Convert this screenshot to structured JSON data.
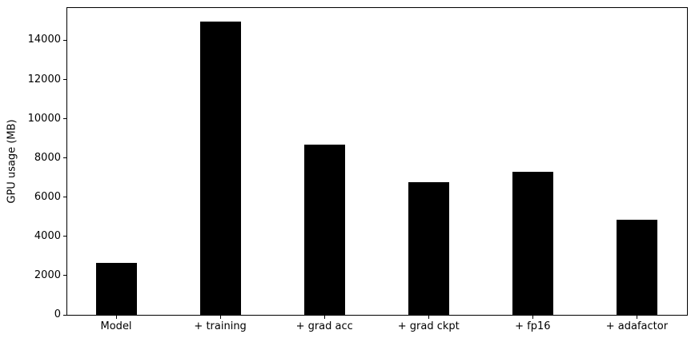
{
  "figure": {
    "background_color": "#ffffff",
    "bar_color": "#000000",
    "axis_color": "#000000",
    "text_color": "#000000"
  },
  "chart_data": {
    "type": "bar",
    "title": "",
    "xlabel": "",
    "ylabel": "GPU usage (MB)",
    "categories": [
      "Model",
      "+ training",
      "+ grad acc",
      "+ grad ckpt",
      "+ fp16",
      "+ adafactor"
    ],
    "values": [
      2631,
      14949,
      8681,
      6775,
      7275,
      4847
    ],
    "yticks": [
      0,
      2000,
      4000,
      6000,
      8000,
      10000,
      12000,
      14000
    ],
    "ytick_labels": [
      "0",
      "2000",
      "4000",
      "6000",
      "8000",
      "10000",
      "12000",
      "14000"
    ],
    "ylim": [
      0,
      15731
    ],
    "grid": false,
    "legend": null,
    "bar_color": "#000000"
  }
}
